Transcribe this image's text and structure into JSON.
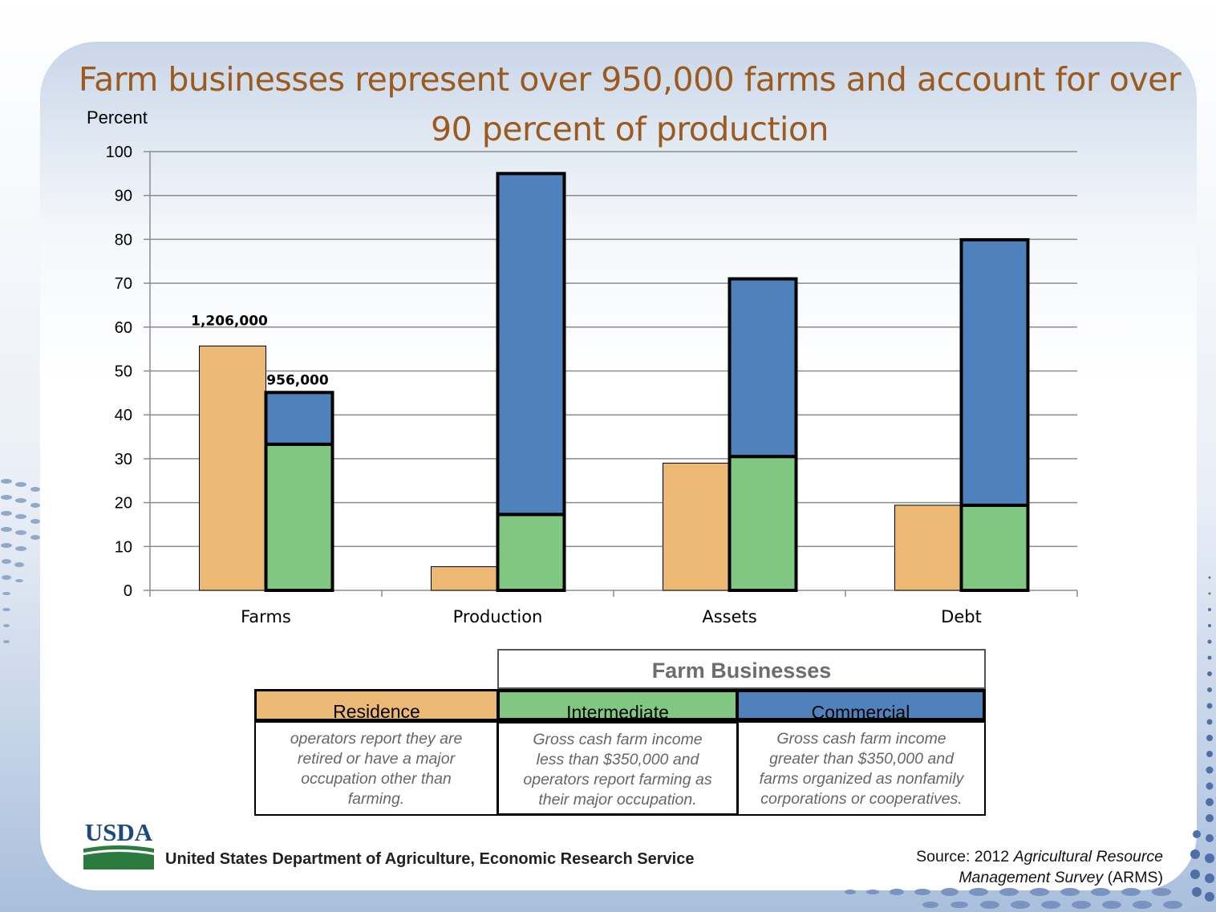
{
  "title_lines": [
    "Farm businesses represent over 950,000 farms and account for over",
    "90 percent of production"
  ],
  "chart_data": {
    "type": "bar",
    "ylabel": "Percent",
    "ylim": [
      0,
      100
    ],
    "yticks": [
      "0",
      "10",
      "20",
      "30",
      "40",
      "50",
      "60",
      "70",
      "80",
      "90",
      "100"
    ],
    "grid": true,
    "categories": [
      "Farms",
      "Production",
      "Assets",
      "Debt"
    ],
    "series": [
      {
        "name": "Residence",
        "color": "#ebb973",
        "values": [
          55.7,
          5.4,
          29,
          19.4
        ]
      },
      {
        "name": "Intermediate",
        "color": "#80c882",
        "values": [
          33.3,
          17.3,
          30.5,
          19.4
        ]
      },
      {
        "name": "Commercial",
        "color": "#4f82bd",
        "values": [
          11.8,
          77.7,
          40.5,
          60.5
        ]
      }
    ],
    "bar_labels": [
      "1,206,000",
      "956,000"
    ]
  },
  "legend": {
    "group_header": "Farm Businesses",
    "residence": {
      "label": "Residence",
      "desc": [
        "operators  report  they are",
        "retired or have a major",
        "occupation other than",
        "farming."
      ]
    },
    "intermediate": {
      "label": "Intermediate",
      "desc": [
        "Gross cash farm income",
        "less than  $350,000 and",
        "operators  report  farming as",
        "their major occupation."
      ]
    },
    "commercial": {
      "label": "Commercial",
      "desc": [
        "Gross cash farm income",
        "greater than  $350,000 and",
        "farms organized  as nonfamily",
        "corporations  or cooperatives."
      ]
    }
  },
  "footer": {
    "logo_text": "USDA",
    "agency": "United States Department of Agriculture, Economic Research Service",
    "source_prefix": "Source: 2012 ",
    "source_italic_1": "Agricultural Resource",
    "source_italic_2": "Management  Survey",
    "source_suffix": " (ARMS)"
  },
  "colors": {
    "title": "#9c5a1e",
    "residence": "#ebb973",
    "intermediate": "#80c882",
    "commercial": "#4f82bd"
  }
}
